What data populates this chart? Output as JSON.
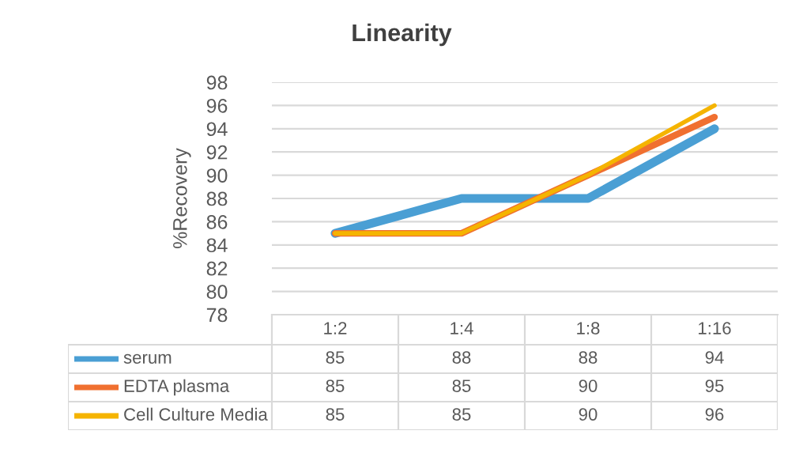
{
  "chart_data": {
    "type": "line",
    "title": "Linearity",
    "ylabel": "%Recovery",
    "categories": [
      "1:2",
      "1:4",
      "1:8",
      "1:16"
    ],
    "series": [
      {
        "name": "serum",
        "color": "#4a9fd4",
        "values": [
          85,
          88,
          88,
          94
        ]
      },
      {
        "name": "EDTA plasma",
        "color": "#f07030",
        "values": [
          85,
          85,
          90,
          95
        ]
      },
      {
        "name": "Cell Culture Media",
        "color": "#f5b400",
        "values": [
          85,
          85,
          90,
          96
        ]
      }
    ],
    "ylim": [
      78,
      98
    ],
    "yticks": [
      78,
      80,
      82,
      84,
      86,
      88,
      90,
      92,
      94,
      96,
      98
    ],
    "grid": "y",
    "legend": "bottom",
    "data_labels": true,
    "line_style": "solid",
    "marker": "none"
  }
}
